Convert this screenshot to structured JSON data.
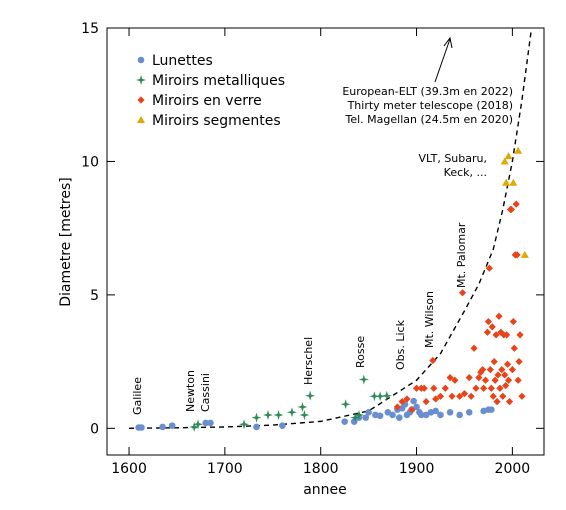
{
  "chart_data": {
    "type": "scatter",
    "xlabel": "annee",
    "ylabel": "Diametre [metres]",
    "xlim": [
      1577,
      2033
    ],
    "ylim": [
      -1,
      15
    ],
    "xticks": [
      1600,
      1700,
      1800,
      1900,
      2000
    ],
    "yticks": [
      0,
      5,
      10,
      15
    ],
    "legend": "upper left",
    "series": [
      {
        "name": "Lunettes",
        "color": "#6a8fd0",
        "marker": "circle",
        "x": [
          1610,
          1613,
          1635,
          1645,
          1680,
          1685,
          1733,
          1760,
          1825,
          1835,
          1840,
          1847,
          1850,
          1857,
          1862,
          1870,
          1875,
          1880,
          1882,
          1885,
          1888,
          1890,
          1893,
          1895,
          1897,
          1900,
          1903,
          1905,
          1910,
          1915,
          1920,
          1925,
          1935,
          1945,
          1955,
          1970,
          1975,
          1978
        ],
        "values": [
          0.03,
          0.03,
          0.05,
          0.1,
          0.2,
          0.2,
          0.05,
          0.1,
          0.25,
          0.25,
          0.4,
          0.4,
          0.6,
          0.5,
          0.47,
          0.6,
          0.5,
          0.7,
          0.4,
          0.75,
          0.9,
          0.5,
          0.6,
          0.7,
          1.02,
          0.8,
          0.6,
          0.5,
          0.5,
          0.6,
          0.65,
          0.5,
          0.6,
          0.5,
          0.6,
          0.65,
          0.7,
          0.7
        ]
      },
      {
        "name": "Miroirs metalliques",
        "color": "#2e8b57",
        "marker": "star",
        "x": [
          1668,
          1672,
          1720,
          1733,
          1745,
          1756,
          1770,
          1781,
          1783,
          1789,
          1826,
          1836,
          1840,
          1845,
          1856,
          1862,
          1869
        ],
        "values": [
          0.05,
          0.15,
          0.15,
          0.4,
          0.5,
          0.5,
          0.6,
          0.8,
          0.5,
          1.22,
          0.9,
          0.4,
          0.5,
          1.83,
          1.2,
          1.2,
          1.22
        ]
      },
      {
        "name": "Miroirs en verre",
        "color": "#e8441a",
        "marker": "diamond",
        "x": [
          1880,
          1885,
          1890,
          1895,
          1900,
          1905,
          1908,
          1910,
          1917,
          1918,
          1920,
          1925,
          1930,
          1935,
          1937,
          1940,
          1945,
          1948,
          1950,
          1955,
          1957,
          1960,
          1962,
          1965,
          1967,
          1969,
          1970,
          1972,
          1974,
          1975,
          1976,
          1977,
          1978,
          1979,
          1980,
          1981,
          1982,
          1983,
          1984,
          1985,
          1986,
          1987,
          1988,
          1989,
          1990,
          1991,
          1992,
          1993,
          1994,
          1995,
          1996,
          1997,
          1998,
          1999,
          2000,
          2001,
          2002,
          2003,
          2004,
          2005,
          2006,
          2007,
          2008,
          2010
        ],
        "values": [
          0.8,
          1,
          1.1,
          0.7,
          1.5,
          1.5,
          1.5,
          1.0,
          2.54,
          1.5,
          1.1,
          1.2,
          1.5,
          1.9,
          1.2,
          1.8,
          1.2,
          5.08,
          1.3,
          1.9,
          1.2,
          3.0,
          1.5,
          1.9,
          2.1,
          2.2,
          1.5,
          1.8,
          3.6,
          4.0,
          6.0,
          2.2,
          1.5,
          3.8,
          1.2,
          2.5,
          1.8,
          3.5,
          1.0,
          2.0,
          4.2,
          1.5,
          3.6,
          2.2,
          1.2,
          3.5,
          2.0,
          1.6,
          3.5,
          2.4,
          1.8,
          1.0,
          8.2,
          8.2,
          2.2,
          4.0,
          3.0,
          6.5,
          8.4,
          6.5,
          1.8,
          2.5,
          3.5,
          1.2
        ]
      },
      {
        "name": "Miroirs segmentes",
        "color": "#e0a800",
        "marker": "triangle",
        "x": [
          1992,
          1996,
          1993.5,
          2001,
          2006,
          2013
        ],
        "values": [
          10.0,
          10.2,
          9.2,
          9.2,
          10.4,
          6.5
        ]
      }
    ],
    "curve": {
      "x": [
        1600,
        1650,
        1700,
        1750,
        1800,
        1850,
        1900,
        1925,
        1950,
        1965,
        1980,
        1990,
        2000,
        2010,
        2020
      ],
      "y": [
        0,
        0.02,
        0.05,
        0.12,
        0.26,
        0.65,
        1.8,
        2.8,
        4.4,
        5.4,
        6.7,
        8.2,
        10,
        12.3,
        15
      ]
    },
    "annotations": [
      "Galilee",
      "Newton",
      "Cassini",
      "Herschel",
      "Rosse",
      "Obs. Lick",
      "Mt. Wilson",
      "Mt. Palomar",
      "European-ELT (39.3m en 2022)",
      "Thirty meter telescope (2018)",
      "Tel. Magellan (24.5m en 2020)",
      "VLT, Subaru,",
      "Keck, ..."
    ]
  }
}
